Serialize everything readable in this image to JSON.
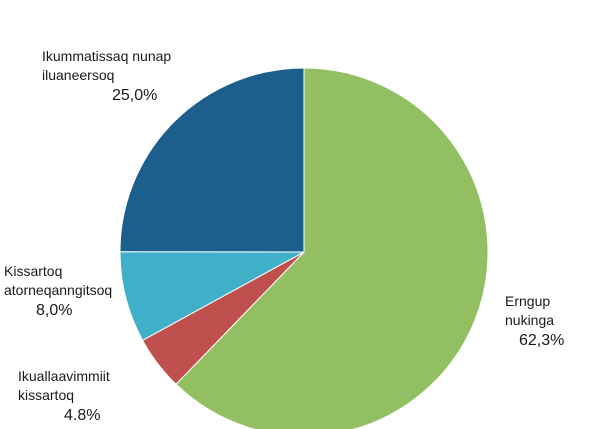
{
  "chart_data": {
    "type": "pie",
    "slices": [
      {
        "label_lines": [
          "Erngup",
          "nukinga"
        ],
        "value_label": "62,3%",
        "value": 62.3,
        "color": "#93bf63"
      },
      {
        "label_lines": [
          "Ikuallaavimmiit",
          "kissartoq"
        ],
        "value_label": "4.8%",
        "value": 4.8,
        "color": "#c0504d"
      },
      {
        "label_lines": [
          "Kissartoq",
          "atorneqanngitsoq"
        ],
        "value_label": "8,0%",
        "value": 8.0,
        "color": "#3fb0c8"
      },
      {
        "label_lines": [
          "Ikummatissaq nunap",
          "iluaneersoq"
        ],
        "value_label": "25,0%",
        "value": 25.0,
        "color": "#1d5f8c"
      }
    ],
    "start": "12 o'clock",
    "direction": "clockwise",
    "legend": "none"
  }
}
